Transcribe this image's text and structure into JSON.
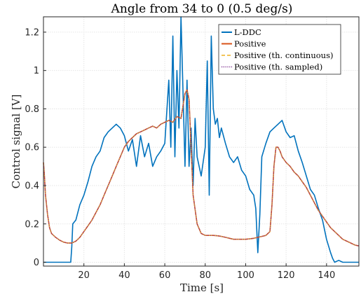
{
  "chart_data": {
    "type": "line",
    "title": "Angle from 34 to 0 (0.5 deg/s)",
    "xlabel": "Time [s]",
    "ylabel": "Control signal [V]",
    "xlim": [
      0,
      156
    ],
    "ylim": [
      -0.02,
      1.28
    ],
    "xticks": [
      20,
      40,
      60,
      80,
      100,
      120,
      140
    ],
    "yticks": [
      0,
      0.2,
      0.4,
      0.6,
      0.8,
      1.0,
      1.2
    ],
    "xtick_labels": [
      "20",
      "40",
      "60",
      "80",
      "100",
      "120",
      "140"
    ],
    "ytick_labels": [
      "0",
      "0.2",
      "0.4",
      "0.6",
      "0.8",
      "1",
      "1.2"
    ],
    "grid": true,
    "legend_position": "top-right",
    "series": [
      {
        "name": "L-DDC",
        "color": "#0072BD",
        "style": "solid",
        "x": [
          0,
          13.5,
          14,
          14.5,
          16,
          18,
          20,
          22,
          24,
          26,
          28,
          30,
          32,
          34,
          36,
          38,
          40,
          42,
          44,
          46,
          48,
          50,
          52,
          54,
          56,
          58,
          60,
          62,
          63,
          64,
          65,
          66,
          67,
          68,
          69,
          70,
          71,
          72,
          73,
          74,
          75,
          76,
          78,
          80,
          81,
          82,
          83,
          84,
          85,
          86,
          87,
          88,
          90,
          92,
          94,
          96,
          98,
          100,
          102,
          104,
          105,
          106,
          107,
          108,
          110,
          112,
          114,
          116,
          118,
          120,
          122,
          124,
          126,
          128,
          130,
          132,
          134,
          136,
          138,
          140,
          142,
          143,
          144,
          146,
          148,
          150,
          156
        ],
        "y": [
          0,
          0,
          0.08,
          0.2,
          0.22,
          0.3,
          0.35,
          0.42,
          0.5,
          0.55,
          0.58,
          0.65,
          0.68,
          0.7,
          0.72,
          0.7,
          0.66,
          0.58,
          0.64,
          0.5,
          0.66,
          0.55,
          0.62,
          0.5,
          0.55,
          0.58,
          0.62,
          0.95,
          0.6,
          1.18,
          0.55,
          1.0,
          0.7,
          1.28,
          0.9,
          0.5,
          0.95,
          0.5,
          0.7,
          0.4,
          0.75,
          0.55,
          0.45,
          0.6,
          1.05,
          0.35,
          1.18,
          0.8,
          0.72,
          0.75,
          0.65,
          0.7,
          0.62,
          0.55,
          0.52,
          0.55,
          0.48,
          0.45,
          0.38,
          0.35,
          0.28,
          0.05,
          0.25,
          0.55,
          0.62,
          0.68,
          0.7,
          0.72,
          0.74,
          0.68,
          0.65,
          0.66,
          0.58,
          0.52,
          0.45,
          0.38,
          0.35,
          0.28,
          0.22,
          0.12,
          0.05,
          0.02,
          0.0,
          0.01,
          0.0,
          0.0,
          0.0
        ]
      },
      {
        "name": "Positive",
        "color": "#D95319",
        "style": "solid",
        "x": [
          0,
          0.5,
          1,
          2,
          3,
          4,
          6,
          8,
          10,
          12,
          14,
          16,
          18,
          20,
          22,
          24,
          26,
          28,
          30,
          32,
          34,
          36,
          38,
          40,
          42,
          44,
          46,
          48,
          50,
          52,
          54,
          56,
          58,
          60,
          62,
          64,
          66,
          68,
          70,
          71,
          72,
          73,
          74,
          76,
          78,
          80,
          82,
          84,
          86,
          88,
          90,
          92,
          94,
          96,
          98,
          100,
          102,
          104,
          106,
          108,
          110,
          112,
          113,
          114,
          115,
          116,
          117,
          118,
          120,
          122,
          124,
          126,
          128,
          130,
          132,
          134,
          136,
          138,
          140,
          142,
          144,
          146,
          148,
          150,
          152,
          154,
          156
        ],
        "y": [
          0.52,
          0.45,
          0.35,
          0.25,
          0.18,
          0.15,
          0.13,
          0.115,
          0.105,
          0.1,
          0.1,
          0.11,
          0.13,
          0.16,
          0.19,
          0.22,
          0.26,
          0.3,
          0.35,
          0.4,
          0.45,
          0.5,
          0.55,
          0.6,
          0.63,
          0.65,
          0.67,
          0.68,
          0.69,
          0.7,
          0.71,
          0.7,
          0.72,
          0.73,
          0.74,
          0.73,
          0.76,
          0.75,
          0.88,
          0.9,
          0.85,
          0.6,
          0.35,
          0.2,
          0.15,
          0.14,
          0.14,
          0.14,
          0.138,
          0.135,
          0.13,
          0.125,
          0.12,
          0.12,
          0.12,
          0.12,
          0.122,
          0.125,
          0.13,
          0.135,
          0.14,
          0.16,
          0.3,
          0.5,
          0.6,
          0.6,
          0.58,
          0.55,
          0.52,
          0.5,
          0.47,
          0.45,
          0.42,
          0.39,
          0.35,
          0.31,
          0.27,
          0.24,
          0.21,
          0.18,
          0.16,
          0.14,
          0.12,
          0.11,
          0.1,
          0.09,
          0.085
        ]
      },
      {
        "name": "Positive (th. continuous)",
        "color": "#EDB120",
        "style": "dashed",
        "x": [
          0,
          0.5,
          1,
          2,
          3,
          4,
          6,
          8,
          10,
          12,
          14,
          16,
          18,
          20,
          22,
          24,
          26,
          28,
          30,
          32,
          34,
          36,
          38,
          40,
          42,
          44,
          46,
          48,
          50,
          52,
          54,
          56,
          58,
          60,
          62,
          64,
          66,
          68,
          70,
          71,
          72,
          73,
          74,
          76,
          78,
          80,
          82,
          84,
          86,
          88,
          90,
          92,
          94,
          96,
          98,
          100,
          102,
          104,
          106,
          108,
          110,
          112,
          113,
          114,
          115,
          116,
          117,
          118,
          120,
          122,
          124,
          126,
          128,
          130,
          132,
          134,
          136,
          138,
          140,
          142,
          144,
          146,
          148,
          150,
          152,
          154,
          156
        ],
        "y": [
          0.52,
          0.45,
          0.35,
          0.25,
          0.18,
          0.15,
          0.13,
          0.115,
          0.105,
          0.1,
          0.1,
          0.11,
          0.13,
          0.16,
          0.19,
          0.22,
          0.26,
          0.3,
          0.35,
          0.4,
          0.45,
          0.5,
          0.55,
          0.6,
          0.63,
          0.65,
          0.67,
          0.68,
          0.69,
          0.7,
          0.71,
          0.7,
          0.72,
          0.73,
          0.74,
          0.73,
          0.76,
          0.75,
          0.88,
          0.9,
          0.85,
          0.6,
          0.35,
          0.2,
          0.15,
          0.14,
          0.14,
          0.14,
          0.138,
          0.135,
          0.13,
          0.125,
          0.12,
          0.12,
          0.12,
          0.12,
          0.122,
          0.125,
          0.13,
          0.135,
          0.14,
          0.16,
          0.3,
          0.5,
          0.6,
          0.6,
          0.58,
          0.55,
          0.52,
          0.5,
          0.47,
          0.45,
          0.42,
          0.39,
          0.35,
          0.31,
          0.27,
          0.24,
          0.21,
          0.18,
          0.16,
          0.14,
          0.12,
          0.11,
          0.1,
          0.09,
          0.085
        ]
      },
      {
        "name": "Positive (th. sampled)",
        "color": "#7E2F8E",
        "style": "dotted",
        "x": [
          0,
          0.5,
          1,
          2,
          3,
          4,
          6,
          8,
          10,
          12,
          14,
          16,
          18,
          20,
          22,
          24,
          26,
          28,
          30,
          32,
          34,
          36,
          38,
          40,
          42,
          44,
          46,
          48,
          50,
          52,
          54,
          56,
          58,
          60,
          62,
          64,
          66,
          68,
          70,
          71,
          72,
          73,
          74,
          76,
          78,
          80,
          82,
          84,
          86,
          88,
          90,
          92,
          94,
          96,
          98,
          100,
          102,
          104,
          106,
          108,
          110,
          112,
          113,
          114,
          115,
          116,
          117,
          118,
          120,
          122,
          124,
          126,
          128,
          130,
          132,
          134,
          136,
          138,
          140,
          142,
          144,
          146,
          148,
          150,
          152,
          154,
          156
        ],
        "y": [
          0.52,
          0.45,
          0.35,
          0.25,
          0.18,
          0.15,
          0.13,
          0.115,
          0.105,
          0.1,
          0.1,
          0.11,
          0.13,
          0.16,
          0.19,
          0.22,
          0.26,
          0.3,
          0.35,
          0.4,
          0.45,
          0.5,
          0.55,
          0.6,
          0.63,
          0.65,
          0.67,
          0.68,
          0.69,
          0.7,
          0.71,
          0.7,
          0.72,
          0.73,
          0.74,
          0.73,
          0.76,
          0.75,
          0.88,
          0.9,
          0.85,
          0.6,
          0.35,
          0.2,
          0.15,
          0.14,
          0.14,
          0.14,
          0.138,
          0.135,
          0.13,
          0.125,
          0.12,
          0.12,
          0.12,
          0.12,
          0.122,
          0.125,
          0.13,
          0.135,
          0.14,
          0.16,
          0.3,
          0.5,
          0.6,
          0.6,
          0.58,
          0.55,
          0.52,
          0.5,
          0.47,
          0.45,
          0.42,
          0.39,
          0.35,
          0.31,
          0.27,
          0.24,
          0.21,
          0.18,
          0.16,
          0.14,
          0.12,
          0.11,
          0.1,
          0.09,
          0.085
        ]
      }
    ]
  }
}
